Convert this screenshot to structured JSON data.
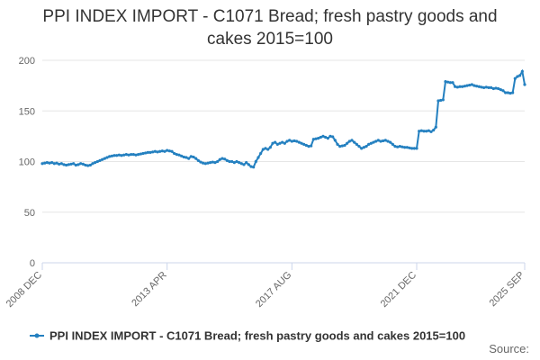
{
  "chart_data": {
    "type": "line",
    "title": "PPI INDEX IMPORT - C1071 Bread; fresh pastry goods and cakes 2015=100",
    "source": "Source:",
    "categories": [
      "2008 DEC",
      null,
      null,
      null,
      null,
      null,
      null,
      null,
      null,
      null,
      null,
      null,
      null,
      null,
      null,
      null,
      null,
      null,
      null,
      null,
      null,
      null,
      null,
      null,
      null,
      null,
      null,
      null,
      null,
      null,
      null,
      null,
      null,
      null,
      null,
      null,
      null,
      null,
      null,
      null,
      null,
      null,
      null,
      null,
      null,
      null,
      null,
      null,
      null,
      null,
      null,
      null,
      "2013 APR",
      null,
      null,
      null,
      null,
      null,
      null,
      null,
      null,
      null,
      null,
      null,
      null,
      null,
      null,
      null,
      null,
      null,
      null,
      null,
      null,
      null,
      null,
      null,
      null,
      null,
      null,
      null,
      null,
      null,
      null,
      null,
      null,
      null,
      null,
      null,
      null,
      null,
      null,
      null,
      null,
      null,
      null,
      null,
      null,
      null,
      null,
      null,
      null,
      null,
      null,
      null,
      "2017 AUG",
      null,
      null,
      null,
      null,
      null,
      null,
      null,
      null,
      null,
      null,
      null,
      null,
      null,
      null,
      null,
      null,
      null,
      null,
      null,
      null,
      null,
      null,
      null,
      null,
      null,
      null,
      null,
      null,
      null,
      null,
      null,
      null,
      null,
      null,
      null,
      null,
      null,
      null,
      null,
      null,
      null,
      null,
      null,
      null,
      null,
      null,
      null,
      null,
      null,
      null,
      null,
      "2021 DEC",
      null,
      null,
      null,
      null,
      null,
      null,
      null,
      null,
      null,
      null,
      null,
      null,
      null,
      null,
      null,
      null,
      null,
      null,
      null,
      null,
      null,
      null,
      null,
      null,
      null,
      null,
      null,
      null,
      null,
      null,
      null,
      null,
      null,
      null,
      null,
      null,
      null,
      null,
      null,
      null,
      null,
      null,
      null,
      null,
      "2025 SEP"
    ],
    "series": [
      {
        "name": "PPI INDEX IMPORT - C1071 Bread; fresh pastry goods and cakes 2015=100",
        "color": "#2480c0",
        "values": [
          98,
          98.5,
          99,
          98.5,
          99,
          98,
          98.5,
          97.5,
          98,
          97,
          96.5,
          97,
          97.5,
          98,
          96.5,
          97,
          98,
          97.5,
          96.5,
          96,
          96.5,
          98,
          99,
          100,
          101,
          102,
          103,
          104,
          105,
          105.5,
          106,
          106,
          106.5,
          106,
          106.5,
          107,
          106.5,
          107,
          107,
          106.5,
          107,
          107.5,
          108,
          108.5,
          109,
          109,
          109.5,
          110,
          109.5,
          110,
          110.5,
          110,
          111,
          110.5,
          110,
          108,
          107,
          106.5,
          105.5,
          104.5,
          104,
          103,
          105,
          104.5,
          103,
          101,
          99.5,
          98.5,
          98,
          98.5,
          99,
          99.5,
          99,
          100,
          102,
          103,
          102.5,
          101,
          100,
          100,
          99,
          100,
          99,
          98,
          97,
          99,
          97,
          95,
          94.5,
          100,
          104,
          108,
          112,
          113,
          112,
          114,
          118,
          119,
          117,
          118,
          119,
          118,
          120,
          121,
          120,
          120.5,
          120,
          119,
          118,
          117,
          116,
          115,
          115.5,
          122,
          122.5,
          123,
          124,
          125,
          124,
          123,
          125,
          124.5,
          121,
          117,
          115,
          115.5,
          116,
          118,
          120,
          121,
          119,
          117,
          115,
          113,
          114,
          115,
          117,
          118,
          119,
          120,
          121,
          120,
          120.5,
          121,
          120,
          119,
          117,
          115,
          114.5,
          115,
          114.5,
          114,
          114,
          113.5,
          113,
          113,
          113,
          130,
          130.5,
          130,
          130,
          130.5,
          129.5,
          131,
          134,
          160,
          160.5,
          161,
          179,
          178.5,
          178,
          178,
          174,
          173.5,
          174,
          174,
          174.5,
          175,
          175.5,
          176,
          175,
          174.5,
          174,
          173.5,
          173,
          173.5,
          173,
          173,
          172,
          172.5,
          172,
          171,
          170,
          168,
          168,
          167.5,
          168,
          182,
          184,
          185,
          189,
          176
        ]
      }
    ],
    "ylim": [
      0,
      200
    ],
    "yticks": [
      0,
      50,
      100,
      150,
      200
    ],
    "grid": true
  }
}
